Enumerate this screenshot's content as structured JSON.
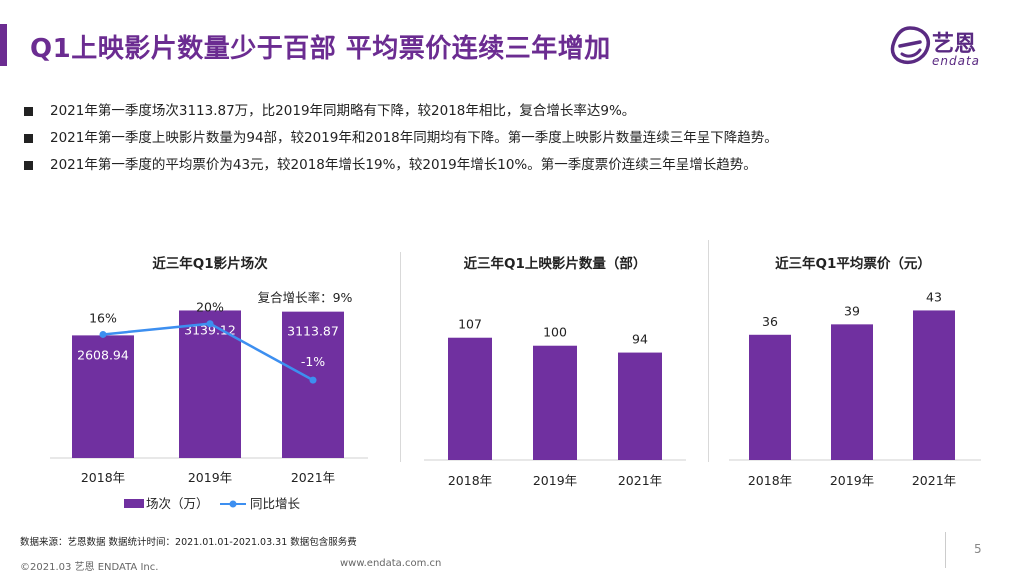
{
  "page": {
    "title": "Q1上映影片数量少于百部  平均票价连续三年增加",
    "logo_cn": "艺恩",
    "logo_en": "endata",
    "page_number": "5",
    "source": "数据来源：艺恩数据  数据统计时间：2021.01.01-2021.03.31 数据包含服务费",
    "copyright": "©2021.03 艺恩 ENDATA Inc.",
    "website": "www.endata.com.cn",
    "accent_color": "#6b2c91",
    "bar_color": "#7030a0",
    "line_color": "#3d8ff0"
  },
  "bullets": [
    "2021年第一季度场次3113.87万，比2019年同期略有下降，较2018年相比，复合增长率达9%。",
    "2021年第一季度上映影片数量为94部，较2019年和2018年同期均有下降。第一季度上映影片数量连续三年呈下降趋势。",
    "2021年第一季度的平均票价为43元，较2018年增长19%，较2019年增长10%。第一季度票价连续三年呈增长趋势。"
  ],
  "chart_data": [
    {
      "type": "bar",
      "title": "近三年Q1影片场次",
      "categories": [
        "2018年",
        "2019年",
        "2021年"
      ],
      "series": [
        {
          "name": "场次（万）",
          "type": "bar",
          "values": [
            2608.94,
            3139.12,
            3113.87
          ],
          "labels": [
            "2608.94",
            "3139.12",
            "3113.87"
          ]
        },
        {
          "name": "同比增长",
          "type": "line",
          "values": [
            16,
            20,
            -1
          ],
          "labels": [
            "16%",
            "20%",
            "-1%"
          ]
        }
      ],
      "annotation": "复合增长率：9%",
      "ylim": [
        0,
        4000
      ],
      "line_ylim": [
        -30,
        40
      ],
      "legend": "bottom",
      "grid": false
    },
    {
      "type": "bar",
      "title": "近三年Q1上映影片数量（部）",
      "categories": [
        "2018年",
        "2019年",
        "2021年"
      ],
      "values": [
        107,
        100,
        94
      ],
      "labels": [
        "107",
        "100",
        "94"
      ],
      "ylim": [
        0,
        140
      ],
      "grid": false
    },
    {
      "type": "bar",
      "title": "近三年Q1平均票价（元）",
      "categories": [
        "2018年",
        "2019年",
        "2021年"
      ],
      "values": [
        36,
        39,
        43
      ],
      "labels": [
        "36",
        "39",
        "43"
      ],
      "ylim": [
        0,
        46
      ],
      "grid": false
    }
  ]
}
